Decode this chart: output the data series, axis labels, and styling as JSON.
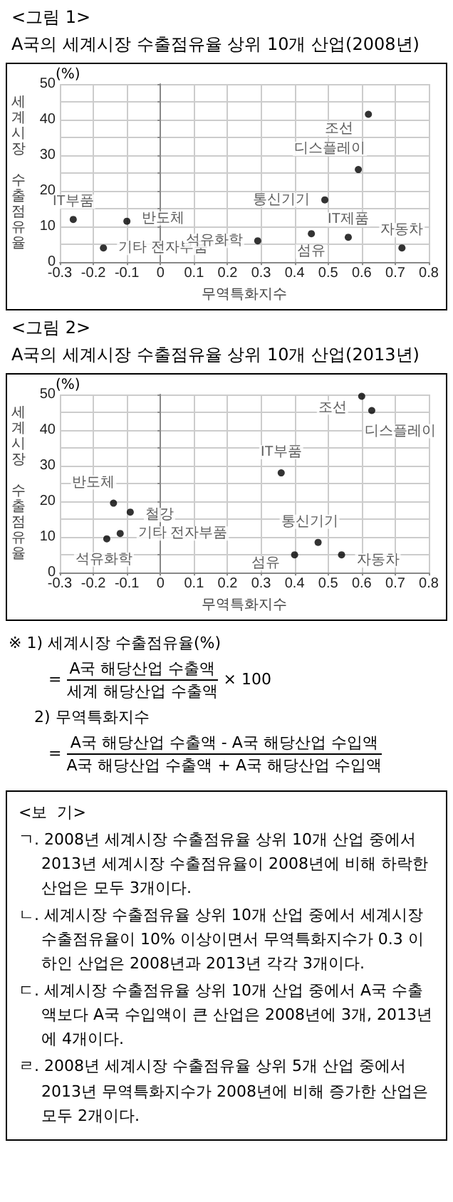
{
  "chart_data": [
    {
      "type": "scatter",
      "title": "<그림 1>",
      "subtitle": "A국의 세계시장 수출점유율 상위 10개 산업(2008년)",
      "xlabel": "무역특화지수",
      "ylabel": "세계시장 수출점유율",
      "annotations": [
        "(%)"
      ],
      "marker": "circle",
      "grid": true,
      "xlim": [
        -0.3,
        0.8
      ],
      "xticks": [
        -0.3,
        -0.2,
        -0.1,
        0,
        0.1,
        0.2,
        0.3,
        0.4,
        0.5,
        0.6,
        0.7,
        0.8
      ],
      "ylim": [
        0,
        50
      ],
      "yticks": [
        0,
        {
          "value": 5,
          "label": null
        },
        10,
        {
          "value": 15,
          "label": null
        },
        20,
        {
          "value": 25,
          "label": null
        },
        30,
        {
          "value": 35,
          "label": null
        },
        40,
        {
          "value": 45,
          "label": null
        },
        50
      ],
      "series": [
        {
          "name": "조선",
          "color": "#000000",
          "x": [
            0.62
          ],
          "values": [
            41.5
          ]
        },
        {
          "name": "디스플레이",
          "color": "#000000",
          "x": [
            0.59
          ],
          "values": [
            26
          ]
        },
        {
          "name": "통신기기",
          "color": "#000000",
          "x": [
            0.49
          ],
          "values": [
            17.5
          ]
        },
        {
          "name": "반도체",
          "color": "#000000",
          "x": [
            -0.1
          ],
          "values": [
            11.5
          ]
        },
        {
          "name": "IT부품",
          "color": "#000000",
          "x": [
            -0.26
          ],
          "values": [
            12
          ]
        },
        {
          "name": "기타 전자부품",
          "color": "#000000",
          "x": [
            -0.17
          ],
          "values": [
            4
          ]
        },
        {
          "name": "석유화학",
          "color": "#000000",
          "x": [
            0.29
          ],
          "values": [
            6
          ]
        },
        {
          "name": "섬유",
          "color": "#000000",
          "x": [
            0.45
          ],
          "values": [
            8
          ]
        },
        {
          "name": "IT제품",
          "color": "#000000",
          "x": [
            0.56
          ],
          "values": [
            7
          ]
        },
        {
          "name": "자동차",
          "color": "#000000",
          "x": [
            0.72
          ],
          "values": [
            4
          ]
        }
      ]
    },
    {
      "type": "scatter",
      "title": "<그림 2>",
      "subtitle": "A국의 세계시장 수출점유율 상위 10개 산업(2013년)",
      "xlabel": "무역특화지수",
      "ylabel": "세계시장 수출점유율",
      "annotations": [
        "(%)"
      ],
      "marker": "circle",
      "grid": true,
      "xlim": [
        -0.3,
        0.8
      ],
      "xticks": [
        -0.3,
        -0.2,
        -0.1,
        0,
        0.1,
        0.2,
        0.3,
        0.4,
        0.5,
        0.6,
        0.7,
        0.8
      ],
      "ylim": [
        0,
        50
      ],
      "yticks": [
        0,
        {
          "value": 5,
          "label": null
        },
        10,
        {
          "value": 15,
          "label": null
        },
        20,
        {
          "value": 25,
          "label": null
        },
        30,
        {
          "value": 35,
          "label": null
        },
        40,
        {
          "value": 45,
          "label": null
        },
        50
      ],
      "series": [
        {
          "name": "조선",
          "color": "#000000",
          "x": [
            0.6
          ],
          "values": [
            49.5
          ]
        },
        {
          "name": "디스플레이",
          "color": "#000000",
          "x": [
            0.63
          ],
          "values": [
            45.5
          ]
        },
        {
          "name": "IT부품",
          "color": "#000000",
          "x": [
            0.36
          ],
          "values": [
            28
          ]
        },
        {
          "name": "반도체",
          "color": "#000000",
          "x": [
            -0.14
          ],
          "values": [
            19.5
          ]
        },
        {
          "name": "철강",
          "color": "#000000",
          "x": [
            -0.09
          ],
          "values": [
            17
          ]
        },
        {
          "name": "기타 전자부품",
          "color": "#000000",
          "x": [
            -0.12
          ],
          "values": [
            11
          ]
        },
        {
          "name": "석유화학",
          "color": "#000000",
          "x": [
            -0.16
          ],
          "values": [
            9.5
          ]
        },
        {
          "name": "통신기기",
          "color": "#000000",
          "x": [
            0.47
          ],
          "values": [
            8.5
          ]
        },
        {
          "name": "섬유",
          "color": "#000000",
          "x": [
            0.4
          ],
          "values": [
            5
          ]
        },
        {
          "name": "자동차",
          "color": "#000000",
          "x": [
            0.54
          ],
          "values": [
            5
          ]
        }
      ]
    },
    {
      "type": "other",
      "annotations": [
        "※ 1) 세계시장 수출점유율(%)",
        "=",
        "A국 해당산업 수출액",
        "세계 해당산업 수출액",
        "× 100",
        "2) 무역특화지수",
        "=",
        "A국 해당산업 수출액 - A국 해당산업 수입액",
        "A국 해당산업 수출액 + A국 해당산업 수입액",
        "<보  기>",
        "ㄱ. 2008년 세계시장 수출점유율 상위 10개 산업 중에서 2013년 세계시장 수출점유율이 2008년에 비해 하락한 산업은 모두 3개이다.",
        "ㄴ. 세계시장 수출점유율 상위 10개 산업 중에서 세계시장 수출점유율이 10% 이상이면서 무역특화지수가 0.3 이하인 산업은 2008년과 2013년 각각 3개이다.",
        "ㄷ. 세계시장 수출점유율 상위 10개 산업 중에서 A국 수출액보다 A국 수입액이 큰 산업은 2008년에 3개, 2013년에 4개이다.",
        "ㄹ. 2008년 세계시장 수출점유율 상위 5개 산업 중에서 2013년 무역특화지수가 2008년에 비해 증가한 산업은 모두 2개이다."
      ]
    }
  ]
}
